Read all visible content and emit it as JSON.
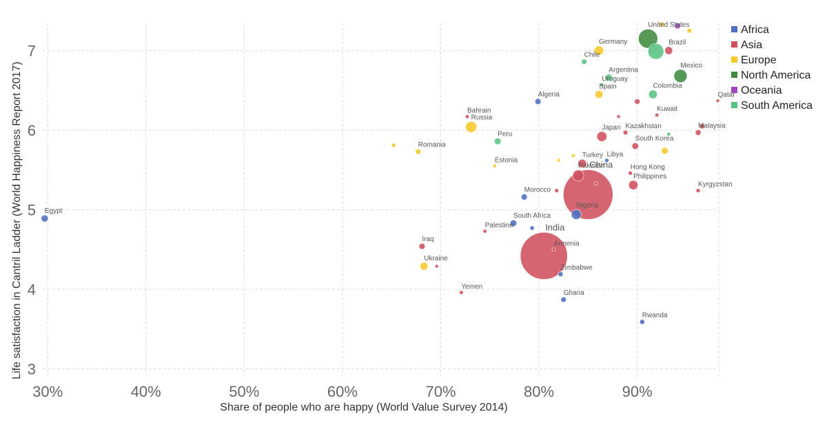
{
  "chart_data": {
    "type": "scatter",
    "xlabel": "Share of people who are happy (World Value Survey 2014)",
    "ylabel": "Life satisfaction in Cantril Ladder (World Happiness Report 2017)",
    "xlim": [
      29.5,
      98.3
    ],
    "ylim": [
      2.9,
      7.35
    ],
    "xticks": [
      30,
      40,
      50,
      60,
      70,
      80,
      90
    ],
    "xtick_labels": [
      "30%",
      "40%",
      "50%",
      "60%",
      "70%",
      "80%",
      "90%"
    ],
    "yticks": [
      3,
      4,
      5,
      6,
      7
    ],
    "ytick_labels": [
      "3",
      "4",
      "5",
      "6",
      "7"
    ],
    "grid": true,
    "legend_position": "right",
    "legend": [
      {
        "name": "Africa",
        "color": "#4c6fbf"
      },
      {
        "name": "Asia",
        "color": "#d0505e"
      },
      {
        "name": "Europe",
        "color": "#f5c928"
      },
      {
        "name": "North America",
        "color": "#3f8a3f"
      },
      {
        "name": "Oceania",
        "color": "#a347c2"
      },
      {
        "name": "South America",
        "color": "#58c282"
      }
    ],
    "points": [
      {
        "label": "Egypt",
        "region": "Africa",
        "x": 29.7,
        "y": 4.89,
        "size": 2
      },
      {
        "label": "Algeria",
        "region": "Africa",
        "x": 79.9,
        "y": 6.36,
        "size": 1.5
      },
      {
        "label": "Morocco",
        "region": "Africa",
        "x": 78.5,
        "y": 5.16,
        "size": 1.5
      },
      {
        "label": "South Africa",
        "region": "Africa",
        "x": 77.4,
        "y": 4.83,
        "size": 1.8
      },
      {
        "label": "",
        "region": "Africa",
        "x": 79.3,
        "y": 4.77,
        "size": 0.8
      },
      {
        "label": "Nigeria",
        "region": "Africa",
        "x": 83.8,
        "y": 4.94,
        "size": 4
      },
      {
        "label": "Libya",
        "region": "Africa",
        "x": 86.9,
        "y": 5.62,
        "size": 0.7
      },
      {
        "label": "Zimbabwe",
        "region": "Africa",
        "x": 82.2,
        "y": 4.19,
        "size": 1
      },
      {
        "label": "Ghana",
        "region": "Africa",
        "x": 82.5,
        "y": 3.87,
        "size": 1.2
      },
      {
        "label": "Rwanda",
        "region": "Africa",
        "x": 90.5,
        "y": 3.59,
        "size": 1
      },
      {
        "label": "China",
        "region": "Asia",
        "x": 85.0,
        "y": 5.19,
        "size": 100
      },
      {
        "label": "India",
        "region": "Asia",
        "x": 80.5,
        "y": 4.42,
        "size": 90
      },
      {
        "label": "Pakistan",
        "region": "Asia",
        "x": 84.0,
        "y": 5.43,
        "size": 5
      },
      {
        "label": "Japan",
        "region": "Asia",
        "x": 86.4,
        "y": 5.92,
        "size": 4
      },
      {
        "label": "Turkey",
        "region": "Asia",
        "x": 84.4,
        "y": 5.58,
        "size": 3
      },
      {
        "label": "Philippines",
        "region": "Asia",
        "x": 89.6,
        "y": 5.31,
        "size": 3.5
      },
      {
        "label": "Hong Kong",
        "region": "Asia",
        "x": 89.3,
        "y": 5.46,
        "size": 0.7
      },
      {
        "label": "Kazakhstan",
        "region": "Asia",
        "x": 88.8,
        "y": 5.97,
        "size": 0.9
      },
      {
        "label": "South Korea",
        "region": "Asia",
        "x": 89.8,
        "y": 5.8,
        "size": 1.8
      },
      {
        "label": "Malaysia",
        "region": "Asia",
        "x": 96.2,
        "y": 5.97,
        "size": 1.3
      },
      {
        "label": "",
        "region": "Asia",
        "x": 96.6,
        "y": 6.05,
        "size": 1.1
      },
      {
        "label": "Kuwait",
        "region": "Asia",
        "x": 92.0,
        "y": 6.19,
        "size": 0.6
      },
      {
        "label": "Qatar",
        "region": "Asia",
        "x": 98.2,
        "y": 6.37,
        "size": 0.5
      },
      {
        "label": "",
        "region": "Asia",
        "x": 90.0,
        "y": 6.36,
        "size": 1.2
      },
      {
        "label": "",
        "region": "Asia",
        "x": 88.1,
        "y": 6.17,
        "size": 0.5
      },
      {
        "label": "Kyrgyzstan",
        "region": "Asia",
        "x": 96.2,
        "y": 5.24,
        "size": 0.7
      },
      {
        "label": "",
        "region": "Asia",
        "x": 81.8,
        "y": 5.24,
        "size": 0.7
      },
      {
        "label": "",
        "region": "Asia",
        "x": 85.8,
        "y": 5.33,
        "size": 0.5
      },
      {
        "label": "Armenia",
        "region": "Asia",
        "x": 81.5,
        "y": 4.5,
        "size": 0.5
      },
      {
        "label": "Iraq",
        "region": "Asia",
        "x": 68.1,
        "y": 4.54,
        "size": 1.5
      },
      {
        "label": "",
        "region": "Asia",
        "x": 69.6,
        "y": 4.29,
        "size": 0.5
      },
      {
        "label": "Palestine",
        "region": "Asia",
        "x": 74.5,
        "y": 4.73,
        "size": 0.6
      },
      {
        "label": "Yemen",
        "region": "Asia",
        "x": 72.1,
        "y": 3.96,
        "size": 0.6
      },
      {
        "label": "Bahrain",
        "region": "Asia",
        "x": 72.7,
        "y": 6.17,
        "size": 0.6
      },
      {
        "label": "Brazil",
        "region": "Asia",
        "x": 93.2,
        "y": 7.0,
        "size": 2.5
      },
      {
        "label": "Germany",
        "region": "Europe",
        "x": 86.1,
        "y": 7.0,
        "size": 3.5
      },
      {
        "label": "Spain",
        "region": "Europe",
        "x": 86.1,
        "y": 6.45,
        "size": 2.5
      },
      {
        "label": "Russia",
        "region": "Europe",
        "x": 73.1,
        "y": 6.04,
        "size": 5
      },
      {
        "label": "Romania",
        "region": "Europe",
        "x": 67.7,
        "y": 5.73,
        "size": 1.2
      },
      {
        "label": "",
        "region": "Europe",
        "x": 65.2,
        "y": 5.81,
        "size": 0.7
      },
      {
        "label": "Estonia",
        "region": "Europe",
        "x": 75.5,
        "y": 5.55,
        "size": 0.5
      },
      {
        "label": "Ukraine",
        "region": "Europe",
        "x": 68.3,
        "y": 4.29,
        "size": 2.5
      },
      {
        "label": "",
        "region": "Europe",
        "x": 82.0,
        "y": 5.62,
        "size": 0.5
      },
      {
        "label": "",
        "region": "Europe",
        "x": 83.5,
        "y": 5.68,
        "size": 0.5
      },
      {
        "label": "",
        "region": "Europe",
        "x": 92.8,
        "y": 5.74,
        "size": 1.8
      },
      {
        "label": "",
        "region": "Europe",
        "x": 92.5,
        "y": 7.33,
        "size": 0.9
      },
      {
        "label": "",
        "region": "Europe",
        "x": 95.3,
        "y": 7.25,
        "size": 0.9
      },
      {
        "label": "United States",
        "region": "North America",
        "x": 91.1,
        "y": 7.15,
        "size": 15
      },
      {
        "label": "Mexico",
        "region": "North America",
        "x": 94.4,
        "y": 6.68,
        "size": 7
      },
      {
        "label": "",
        "region": "Oceania",
        "x": 94.1,
        "y": 7.31,
        "size": 1.5
      },
      {
        "label": "Chile",
        "region": "South America",
        "x": 84.6,
        "y": 6.86,
        "size": 1.2
      },
      {
        "label": "Argentina",
        "region": "South America",
        "x": 87.1,
        "y": 6.66,
        "size": 2
      },
      {
        "label": "Uruguay",
        "region": "South America",
        "x": 86.4,
        "y": 6.57,
        "size": 0.6
      },
      {
        "label": "Colombia",
        "region": "South America",
        "x": 91.6,
        "y": 6.45,
        "size": 3
      },
      {
        "label": "Peru",
        "region": "South America",
        "x": 75.8,
        "y": 5.86,
        "size": 1.8
      },
      {
        "label": "",
        "region": "South America",
        "x": 93.2,
        "y": 5.95,
        "size": 0.6
      },
      {
        "label": "",
        "region": "South America",
        "x": 91.9,
        "y": 6.99,
        "size": 10
      }
    ]
  }
}
